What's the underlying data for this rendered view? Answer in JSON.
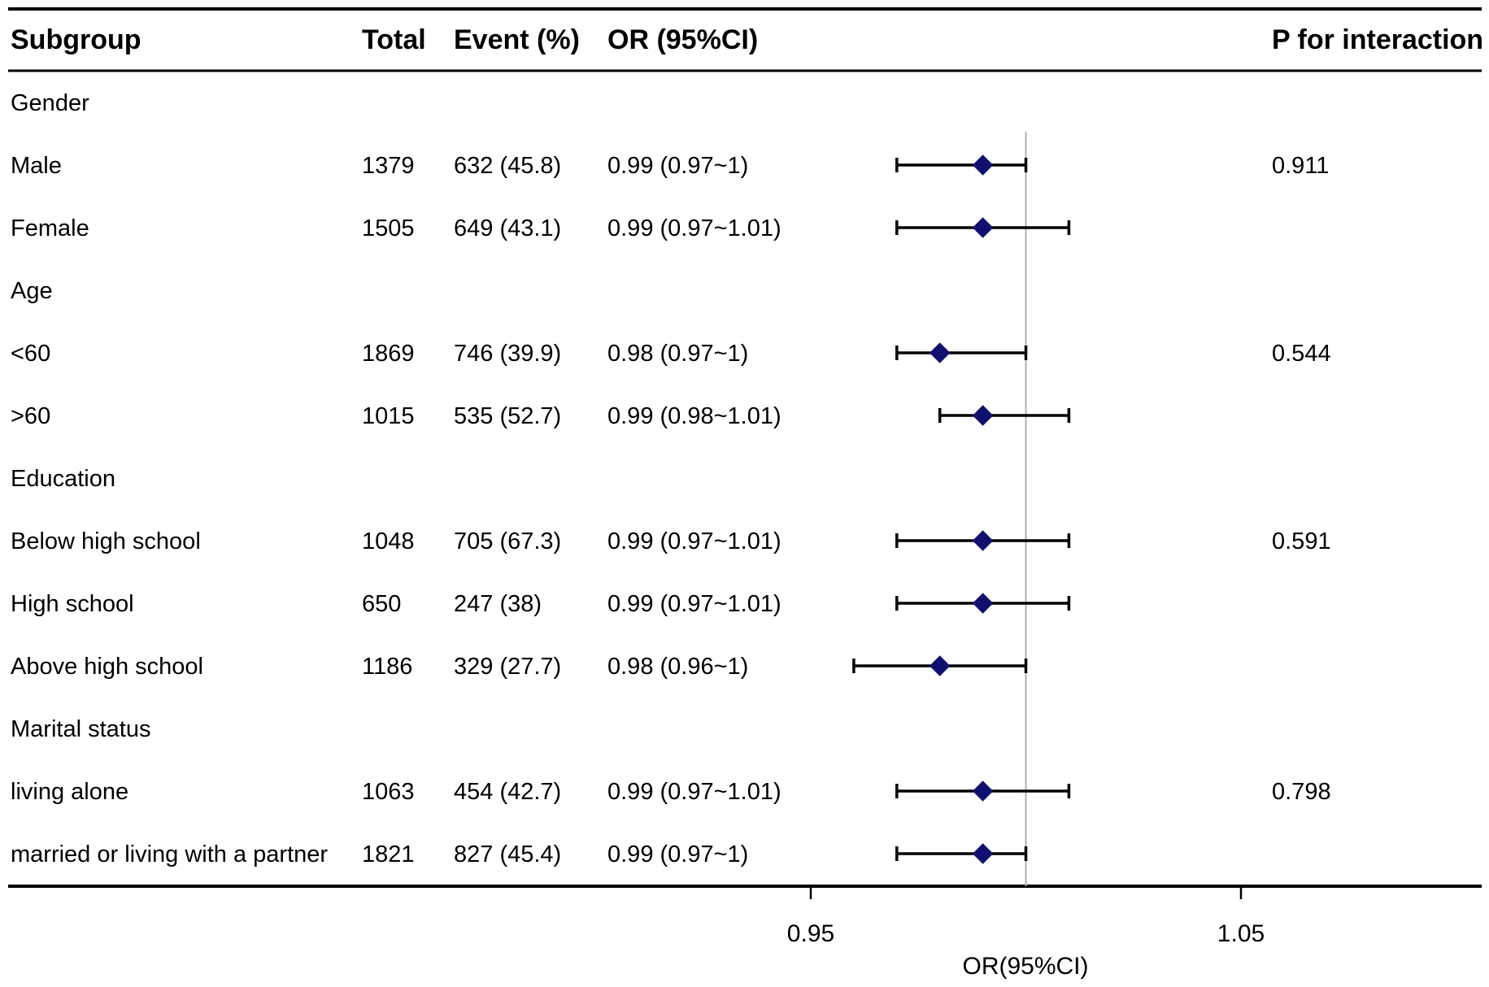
{
  "headers": {
    "subgroup": "Subgroup",
    "total": "Total",
    "event": "Event (%)",
    "or": "OR (95%CI)",
    "p": "P for interaction"
  },
  "rows": [
    {
      "label": "Gender",
      "group": true
    },
    {
      "label": "Male",
      "total": "1379",
      "event": "632 (45.8)",
      "or_text": "0.99 (0.97~1)",
      "p": "0.911"
    },
    {
      "label": "Female",
      "total": "1505",
      "event": "649 (43.1)",
      "or_text": "0.99 (0.97~1.01)",
      "p": ""
    },
    {
      "label": "Age",
      "group": true
    },
    {
      "label": "<60",
      "total": "1869",
      "event": "746 (39.9)",
      "or_text": "0.98 (0.97~1)",
      "p": "0.544"
    },
    {
      "label": ">60",
      "total": "1015",
      "event": "535 (52.7)",
      "or_text": "0.99 (0.98~1.01)",
      "p": ""
    },
    {
      "label": "Education",
      "group": true
    },
    {
      "label": "Below high school",
      "total": "1048",
      "event": "705 (67.3)",
      "or_text": "0.99 (0.97~1.01)",
      "p": "0.591"
    },
    {
      "label": "High school",
      "total": "650",
      "event": "247 (38)",
      "or_text": "0.99 (0.97~1.01)",
      "p": ""
    },
    {
      "label": "Above high school",
      "total": "1186",
      "event": "329 (27.7)",
      "or_text": "0.98 (0.96~1)",
      "p": ""
    },
    {
      "label": "Marital status",
      "group": true
    },
    {
      "label": "living alone",
      "total": "1063",
      "event": "454 (42.7)",
      "or_text": "0.99 (0.97~1.01)",
      "p": "0.798"
    },
    {
      "label": "married or living with a partner",
      "total": "1821",
      "event": "827 (45.4)",
      "or_text": "0.99 (0.97~1)",
      "p": ""
    }
  ],
  "chart_data": {
    "type": "forest",
    "xlabel": "OR(95%CI)",
    "xlim": [
      0.91,
      1.1
    ],
    "reference_line": 1.0,
    "ticks": [
      0.95,
      1.05
    ],
    "tick_labels": [
      "0.95",
      "1.05"
    ],
    "points": [
      {
        "label": "Male",
        "or": 0.99,
        "lower": 0.97,
        "upper": 1.0
      },
      {
        "label": "Female",
        "or": 0.99,
        "lower": 0.97,
        "upper": 1.01
      },
      {
        "label": "<60",
        "or": 0.98,
        "lower": 0.97,
        "upper": 1.0
      },
      {
        "label": ">60",
        "or": 0.99,
        "lower": 0.98,
        "upper": 1.01
      },
      {
        "label": "Below high school",
        "or": 0.99,
        "lower": 0.97,
        "upper": 1.01
      },
      {
        "label": "High school",
        "or": 0.99,
        "lower": 0.97,
        "upper": 1.01
      },
      {
        "label": "Above high school",
        "or": 0.98,
        "lower": 0.96,
        "upper": 1.0
      },
      {
        "label": "living alone",
        "or": 0.99,
        "lower": 0.97,
        "upper": 1.01
      },
      {
        "label": "married or living with a partner",
        "or": 0.99,
        "lower": 0.97,
        "upper": 1.0
      }
    ],
    "colors": {
      "marker": "#10106e",
      "line": "#000000",
      "reference": "#b0b0b0"
    }
  }
}
